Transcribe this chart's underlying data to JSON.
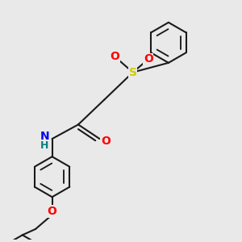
{
  "background_color": "#e9e9e9",
  "bond_color": "#1a1a1a",
  "bond_width": 1.5,
  "S_color": "#cccc00",
  "O_color": "#ff0000",
  "N_color": "#0000ee",
  "H_color": "#008080",
  "figsize": [
    3.0,
    3.0
  ],
  "dpi": 100,
  "xlim": [
    0,
    10
  ],
  "ylim": [
    0,
    10
  ]
}
